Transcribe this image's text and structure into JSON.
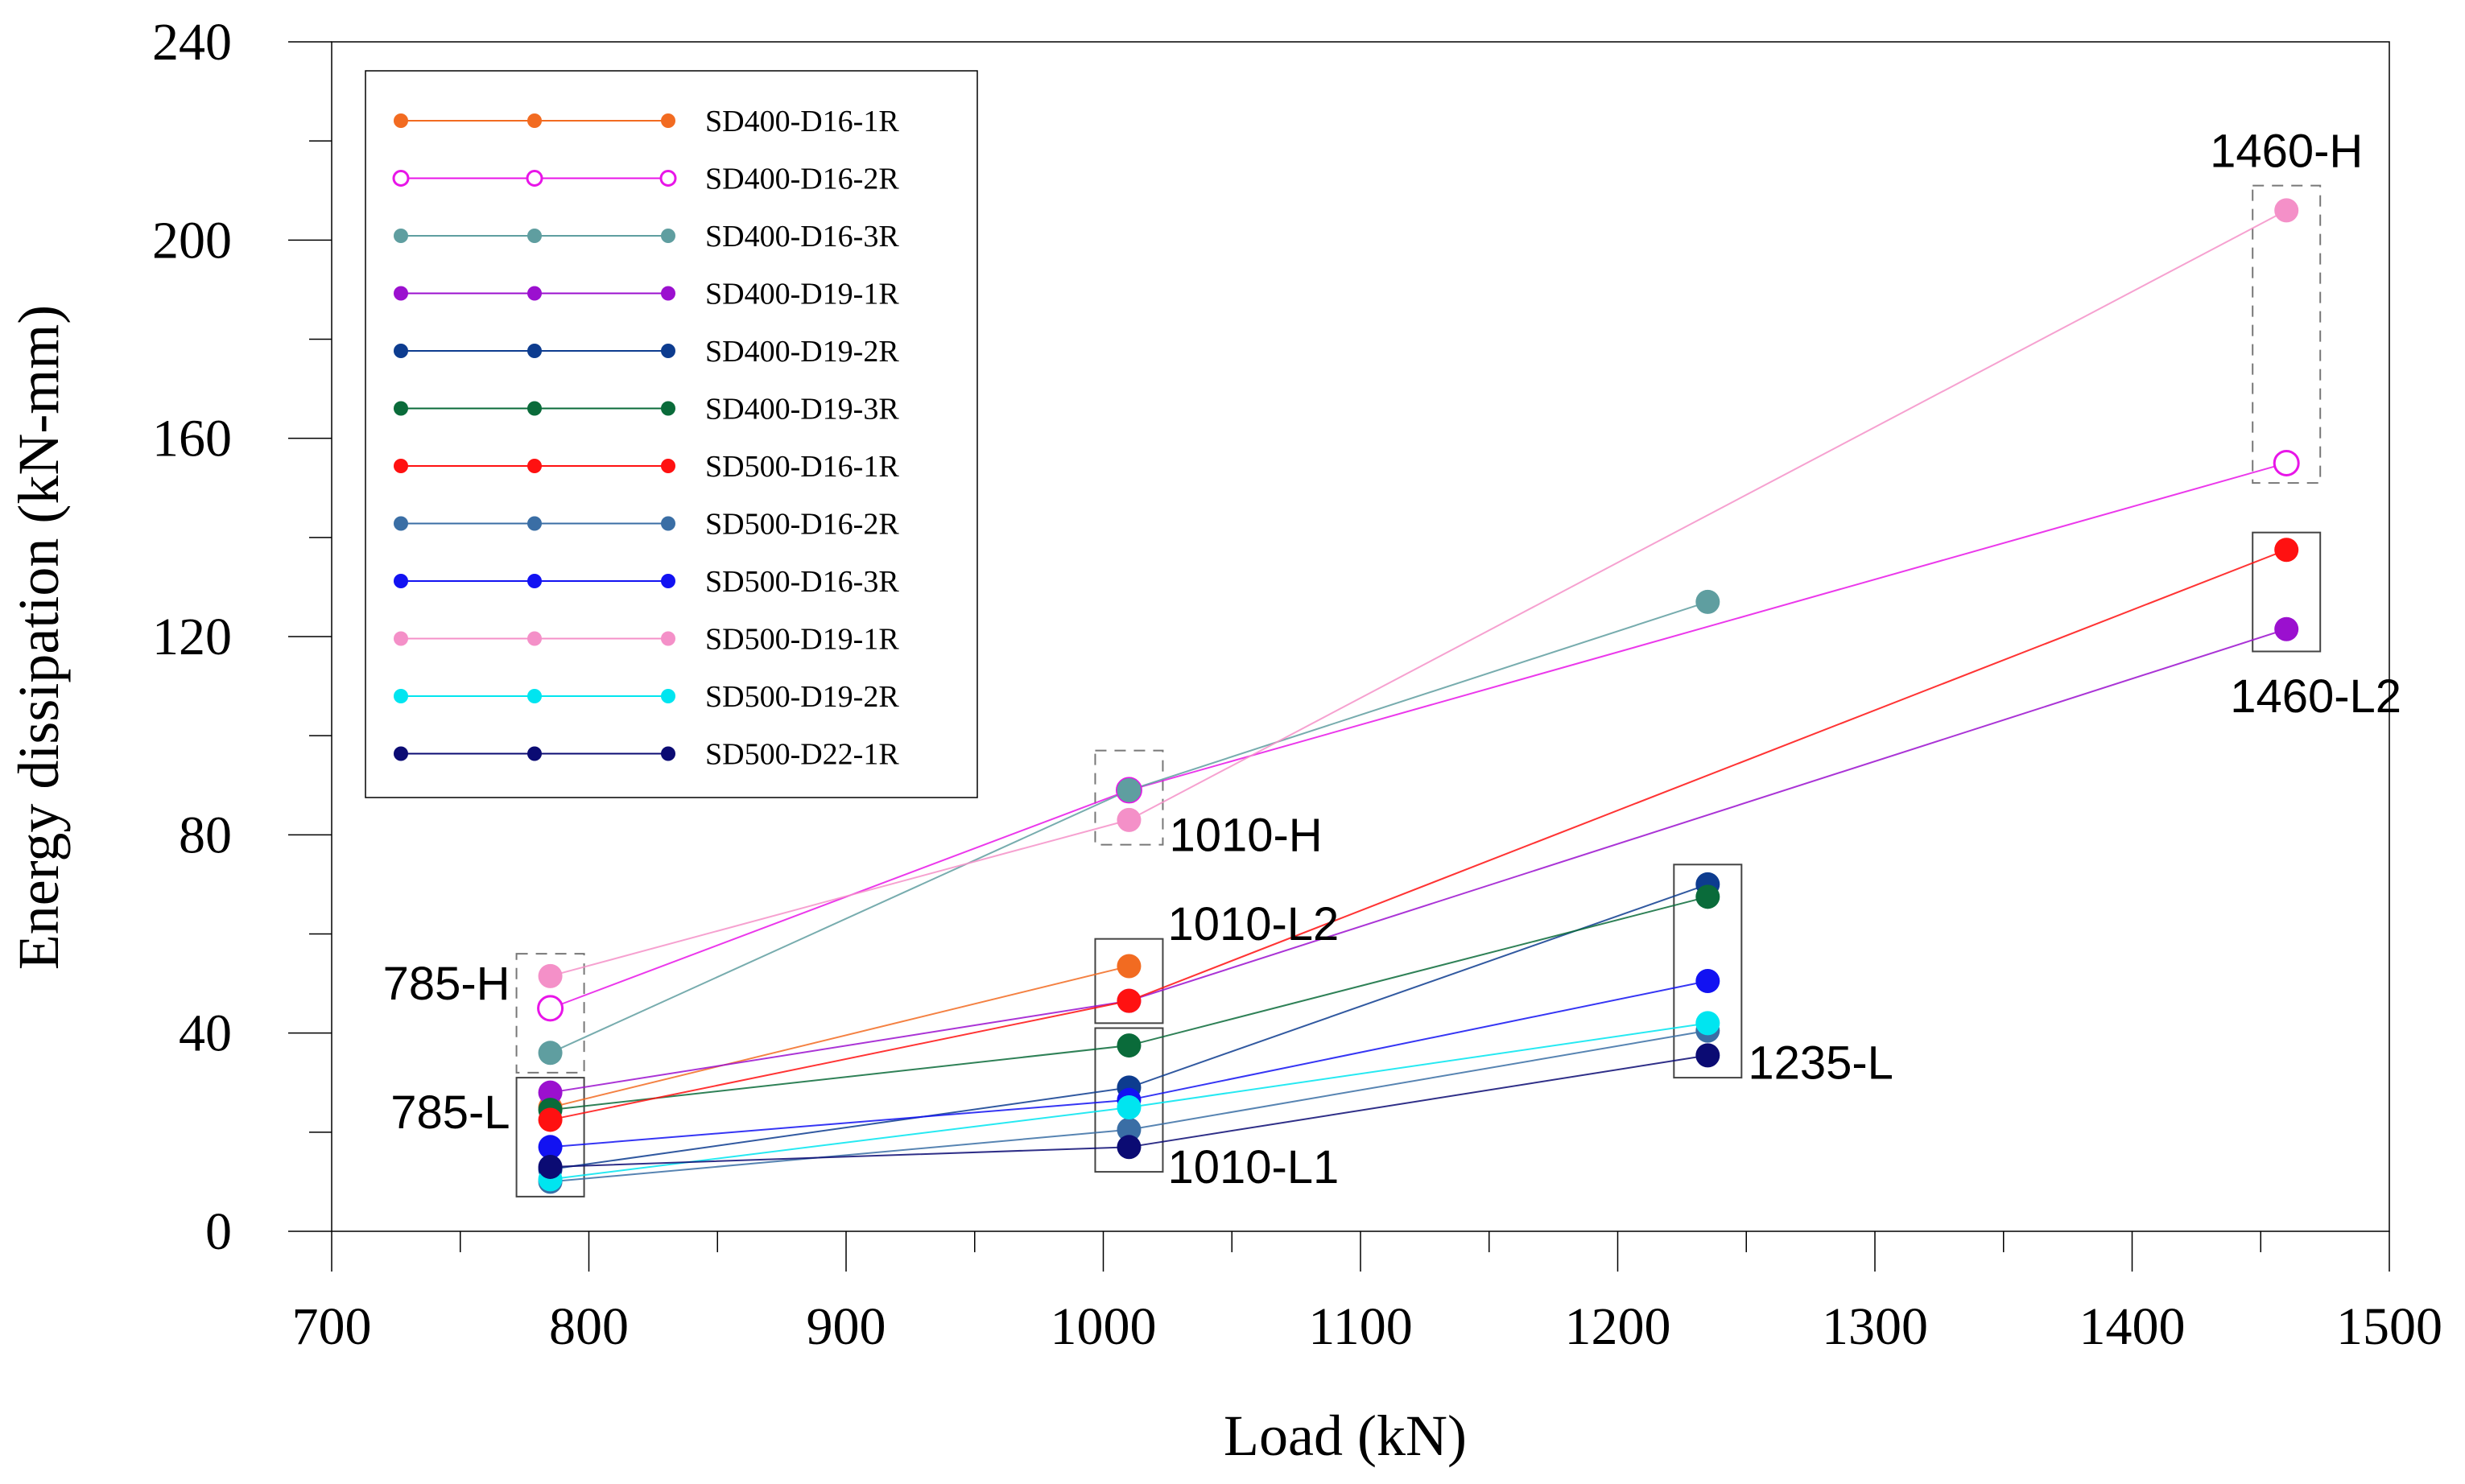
{
  "chart_data": {
    "type": "line",
    "title": "",
    "xlabel": "Load (kN)",
    "ylabel": "Energy dissipation (kN-mm)",
    "xlim": [
      700,
      1500
    ],
    "ylim": [
      0,
      240
    ],
    "xticks": [
      700,
      800,
      900,
      1000,
      1100,
      1200,
      1300,
      1400,
      1500
    ],
    "yticks": [
      0,
      40,
      80,
      120,
      160,
      200,
      240
    ],
    "grid": false,
    "legend_position": "top-left",
    "series": [
      {
        "name": "SD400-D16-1R",
        "color": "#F26B21",
        "marker": "filled",
        "points": [
          [
            785,
            25
          ],
          [
            1010,
            53.5
          ]
        ]
      },
      {
        "name": "SD400-D16-2R",
        "color": "#E815E8",
        "marker": "open",
        "points": [
          [
            785,
            45
          ],
          [
            1010,
            89
          ],
          [
            1460,
            155
          ]
        ]
      },
      {
        "name": "SD400-D16-3R",
        "color": "#5F9EA0",
        "marker": "filled",
        "points": [
          [
            785,
            36
          ],
          [
            1010,
            89
          ],
          [
            1235,
            127
          ]
        ]
      },
      {
        "name": "SD400-D19-1R",
        "color": "#9B10CF",
        "marker": "filled",
        "points": [
          [
            785,
            28
          ],
          [
            1010,
            46.5
          ],
          [
            1460,
            121.5
          ]
        ]
      },
      {
        "name": "SD400-D19-2R",
        "color": "#0D3C8F",
        "marker": "filled",
        "points": [
          [
            785,
            12.5
          ],
          [
            1010,
            29
          ],
          [
            1235,
            70
          ]
        ]
      },
      {
        "name": "SD400-D19-3R",
        "color": "#0A6B3A",
        "marker": "filled",
        "points": [
          [
            785,
            24.5
          ],
          [
            1010,
            37.5
          ],
          [
            1235,
            67.5
          ]
        ]
      },
      {
        "name": "SD500-D16-1R",
        "color": "#FF1111",
        "marker": "filled",
        "points": [
          [
            785,
            22.5
          ],
          [
            1010,
            46.5
          ],
          [
            1460,
            137.5
          ]
        ]
      },
      {
        "name": "SD500-D16-2R",
        "color": "#3A6EA5",
        "marker": "filled",
        "points": [
          [
            785,
            10
          ],
          [
            1010,
            20.5
          ],
          [
            1235,
            40.5
          ]
        ]
      },
      {
        "name": "SD500-D16-3R",
        "color": "#1212F2",
        "marker": "filled",
        "points": [
          [
            785,
            17
          ],
          [
            1010,
            26.5
          ],
          [
            1235,
            50.5
          ]
        ]
      },
      {
        "name": "SD500-D19-1R",
        "color": "#F490C8",
        "marker": "filled",
        "points": [
          [
            785,
            51.5
          ],
          [
            1010,
            83
          ],
          [
            1460,
            206
          ]
        ]
      },
      {
        "name": "SD500-D19-2R",
        "color": "#00E5F0",
        "marker": "filled",
        "points": [
          [
            785,
            10.5
          ],
          [
            1010,
            25
          ],
          [
            1235,
            42
          ]
        ]
      },
      {
        "name": "SD500-D22-1R",
        "color": "#0B0B73",
        "marker": "filled",
        "points": [
          [
            785,
            13
          ],
          [
            1010,
            17
          ],
          [
            1235,
            35.5
          ]
        ]
      }
    ],
    "annotations": [
      {
        "text": "1460-H",
        "x": 1460,
        "y": 218
      },
      {
        "text": "1460-L2",
        "x": 1460,
        "y": 108
      },
      {
        "text": "1010-H",
        "x": 1010,
        "y": 80
      },
      {
        "text": "1010-L2",
        "x": 1010,
        "y": 62
      },
      {
        "text": "785-H",
        "x": 785,
        "y": 50
      },
      {
        "text": "785-L",
        "x": 785,
        "y": 24
      },
      {
        "text": "1235-L",
        "x": 1235,
        "y": 34
      },
      {
        "text": "1010-L1",
        "x": 1010,
        "y": 13
      }
    ],
    "group_boxes": [
      {
        "style": "dashed",
        "x": 785,
        "ylim": [
          32,
          56
        ]
      },
      {
        "style": "solid",
        "x": 785,
        "ylim": [
          7,
          31
        ]
      },
      {
        "style": "dashed",
        "x": 1010,
        "ylim": [
          78,
          97
        ]
      },
      {
        "style": "solid",
        "x": 1010,
        "ylim": [
          42,
          59
        ]
      },
      {
        "style": "solid",
        "x": 1010,
        "ylim": [
          12,
          41
        ]
      },
      {
        "style": "solid",
        "x": 1235,
        "ylim": [
          31,
          74
        ]
      },
      {
        "style": "dashed",
        "x": 1460,
        "ylim": [
          151,
          211
        ]
      },
      {
        "style": "solid",
        "x": 1460,
        "ylim": [
          117,
          141
        ]
      }
    ]
  }
}
